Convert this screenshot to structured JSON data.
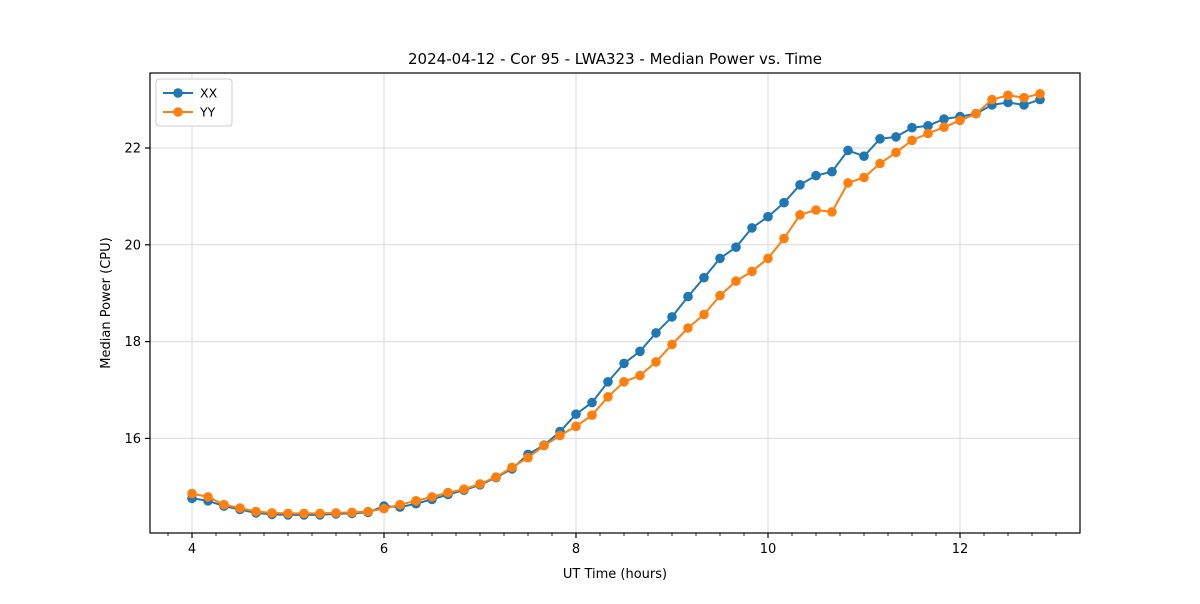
{
  "chart_data": {
    "type": "line",
    "title": "2024-04-12 - Cor 95 - LWA323 - Median Power vs. Time",
    "xlabel": "UT Time (hours)",
    "ylabel": "Median Power (CPU)",
    "xlim": [
      3.5625,
      13.25
    ],
    "ylim": [
      14.045,
      23.55
    ],
    "x_major_ticks": [
      4,
      6,
      8,
      10,
      12
    ],
    "x_minor_step": 0.25,
    "y_major_ticks": [
      16,
      18,
      20,
      22
    ],
    "grid": true,
    "grid_color": "#d9d9d9",
    "frame_color": "#000000",
    "legend_position": "upper-left",
    "marker": "circle",
    "x": [
      4,
      4.167,
      4.333,
      4.5,
      4.667,
      4.833,
      5,
      5.167,
      5.333,
      5.5,
      5.667,
      5.833,
      6,
      6.167,
      6.333,
      6.5,
      6.667,
      6.833,
      7,
      7.167,
      7.333,
      7.5,
      7.667,
      7.833,
      8,
      8.167,
      8.333,
      8.5,
      8.667,
      8.833,
      9,
      9.167,
      9.333,
      9.5,
      9.667,
      9.833,
      10,
      10.167,
      10.333,
      10.5,
      10.667,
      10.833,
      11,
      11.167,
      11.333,
      11.5,
      11.667,
      11.833,
      12,
      12.167,
      12.333,
      12.5,
      12.667,
      12.833
    ],
    "series": [
      {
        "name": "XX",
        "color": "#1f77b4",
        "values": [
          14.76,
          14.71,
          14.6,
          14.53,
          14.46,
          14.43,
          14.42,
          14.42,
          14.42,
          14.44,
          14.45,
          14.47,
          14.6,
          14.58,
          14.65,
          14.74,
          14.84,
          14.93,
          15.04,
          15.19,
          15.37,
          15.67,
          15.86,
          16.14,
          16.5,
          16.74,
          17.17,
          17.55,
          17.8,
          18.18,
          18.51,
          18.93,
          19.32,
          19.72,
          19.95,
          20.35,
          20.58,
          20.87,
          21.24,
          21.43,
          21.51,
          21.95,
          21.83,
          22.19,
          22.23,
          22.42,
          22.46,
          22.6,
          22.65,
          22.71,
          22.89,
          22.94,
          22.89,
          23.0
        ]
      },
      {
        "name": "YY",
        "color": "#ff7f0e",
        "values": [
          14.86,
          14.79,
          14.63,
          14.56,
          14.49,
          14.46,
          14.45,
          14.45,
          14.45,
          14.46,
          14.47,
          14.49,
          14.55,
          14.63,
          14.71,
          14.79,
          14.88,
          14.95,
          15.06,
          15.2,
          15.4,
          15.6,
          15.85,
          16.06,
          16.25,
          16.48,
          16.86,
          17.17,
          17.3,
          17.58,
          17.94,
          18.28,
          18.56,
          18.95,
          19.25,
          19.45,
          19.72,
          20.13,
          20.62,
          20.72,
          20.68,
          21.28,
          21.39,
          21.68,
          21.91,
          22.16,
          22.3,
          22.43,
          22.57,
          22.71,
          23.0,
          23.09,
          23.04,
          23.12
        ]
      }
    ]
  }
}
